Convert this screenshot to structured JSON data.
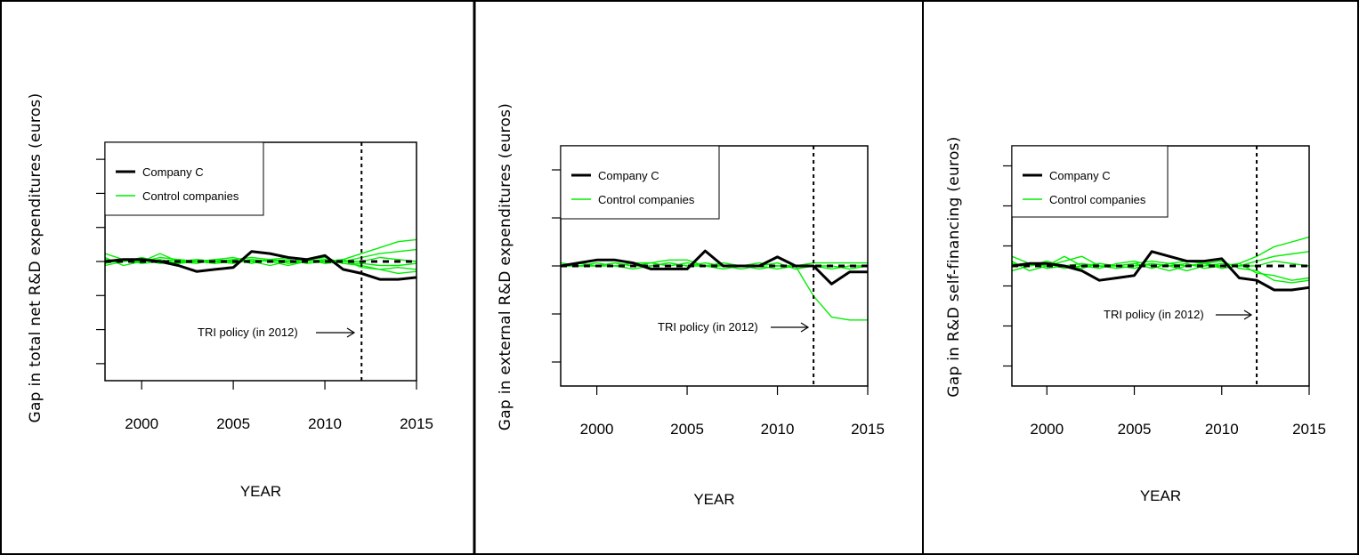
{
  "chart_data": [
    {
      "type": "line",
      "title": "",
      "xlabel": "YEAR",
      "ylabel": "Gap in total net R&D expenditures (euros)",
      "xlim": [
        1998,
        2015
      ],
      "ylim": [
        -3,
        3
      ],
      "xticks": [
        "2000",
        "2005",
        "2010",
        "2015"
      ],
      "y_tick_labels_shown": false,
      "legend": {
        "placement": "top-left",
        "entries": [
          "Company C",
          "Control companies"
        ]
      },
      "annotation": {
        "text": "TRI policy (in 2012)",
        "x": 2012
      },
      "x": [
        1998,
        1999,
        2000,
        2001,
        2002,
        2003,
        2004,
        2005,
        2006,
        2007,
        2008,
        2009,
        2010,
        2011,
        2012,
        2013,
        2014,
        2015
      ],
      "series": [
        {
          "name": "Company C",
          "color": "#000000",
          "values": [
            0.0,
            0.05,
            0.05,
            0.0,
            -0.1,
            -0.25,
            -0.2,
            -0.15,
            0.25,
            0.2,
            0.1,
            0.05,
            0.15,
            -0.2,
            -0.3,
            -0.45,
            -0.45,
            -0.4
          ]
        },
        {
          "name": "Control companies",
          "color": "#00ee00",
          "values": [
            0.2,
            0.05,
            0.0,
            0.1,
            0.05,
            0.0,
            0.0,
            0.05,
            0.1,
            0.05,
            0.1,
            0.05,
            0.0,
            0.05,
            0.2,
            0.35,
            0.5,
            0.55
          ]
        },
        {
          "color": "#00ee00",
          "values": [
            0.1,
            -0.1,
            0.0,
            0.2,
            0.0,
            -0.05,
            0.05,
            0.1,
            0.0,
            -0.1,
            0.0,
            0.05,
            0.1,
            -0.05,
            -0.1,
            -0.2,
            -0.15,
            -0.2
          ]
        },
        {
          "color": "#00ee00",
          "values": [
            -0.1,
            0.0,
            0.1,
            0.0,
            -0.05,
            0.05,
            0.0,
            -0.05,
            0.05,
            0.0,
            -0.1,
            0.0,
            0.05,
            0.0,
            0.1,
            0.2,
            0.25,
            0.3
          ]
        },
        {
          "color": "#00ee00",
          "values": [
            0.0,
            0.05,
            -0.05,
            0.0,
            0.05,
            0.0,
            -0.05,
            0.0,
            0.05,
            0.0,
            0.05,
            -0.05,
            0.0,
            0.05,
            -0.15,
            -0.2,
            -0.3,
            -0.25
          ]
        },
        {
          "color": "#00ee00",
          "values": [
            0.05,
            0.0,
            0.05,
            -0.05,
            0.0,
            0.05,
            0.0,
            0.05,
            -0.05,
            0.05,
            0.0,
            0.05,
            -0.05,
            0.0,
            0.0,
            0.1,
            0.05,
            0.0
          ]
        },
        {
          "color": "#00ee00",
          "values": [
            -0.05,
            0.05,
            0.0,
            0.05,
            -0.05,
            0.0,
            0.05,
            0.0,
            0.0,
            0.05,
            -0.05,
            0.0,
            0.05,
            -0.05,
            -0.05,
            -0.1,
            -0.1,
            -0.05
          ]
        }
      ],
      "benchmark": {
        "style": "dashed",
        "value": 0
      }
    },
    {
      "type": "line",
      "title": "",
      "xlabel": "YEAR",
      "ylabel": "Gap in external R&D expenditures (euros)",
      "xlim": [
        1998,
        2015
      ],
      "ylim": [
        -2,
        2
      ],
      "xticks": [
        "2000",
        "2005",
        "2010",
        "2015"
      ],
      "y_tick_labels_shown": false,
      "legend": {
        "placement": "top-left",
        "entries": [
          "Company C",
          "Control companies"
        ]
      },
      "annotation": {
        "text": "TRI policy (in 2012)",
        "x": 2012
      },
      "x": [
        1998,
        1999,
        2000,
        2001,
        2002,
        2003,
        2004,
        2005,
        2006,
        2007,
        2008,
        2009,
        2010,
        2011,
        2012,
        2013,
        2014,
        2015
      ],
      "series": [
        {
          "name": "Company C",
          "color": "#000000",
          "values": [
            0.0,
            0.05,
            0.1,
            0.1,
            0.05,
            -0.05,
            -0.05,
            -0.05,
            0.25,
            0.0,
            0.0,
            0.0,
            0.15,
            0.0,
            0.0,
            -0.3,
            -0.1,
            -0.1
          ]
        },
        {
          "name": "Control companies",
          "color": "#00ee00",
          "values": [
            0.0,
            0.0,
            0.0,
            0.0,
            0.05,
            0.05,
            0.1,
            0.1,
            0.0,
            0.0,
            0.0,
            -0.05,
            0.0,
            0.0,
            -0.5,
            -0.85,
            -0.9,
            -0.9
          ]
        },
        {
          "color": "#00ee00",
          "values": [
            0.0,
            0.05,
            0.0,
            0.05,
            0.0,
            0.05,
            0.0,
            0.05,
            0.0,
            -0.05,
            0.0,
            0.05,
            0.0,
            0.0,
            0.05,
            0.05,
            0.05,
            0.05
          ]
        },
        {
          "color": "#00ee00",
          "values": [
            0.0,
            0.0,
            0.05,
            0.0,
            -0.05,
            0.0,
            0.05,
            0.0,
            0.05,
            0.0,
            -0.05,
            0.0,
            0.05,
            -0.05,
            0.0,
            -0.05,
            0.0,
            0.0
          ]
        },
        {
          "color": "#00ee00",
          "values": [
            0.05,
            0.0,
            0.0,
            0.05,
            0.0,
            0.0,
            0.05,
            0.0,
            0.0,
            0.05,
            0.0,
            0.0,
            -0.05,
            0.0,
            0.0,
            0.0,
            -0.05,
            0.0
          ]
        }
      ],
      "benchmark": {
        "style": "dashed",
        "value": 0
      }
    },
    {
      "type": "line",
      "title": "",
      "xlabel": "YEAR",
      "ylabel": "Gap in  R&D self-financing (euros)",
      "xlim": [
        1998,
        2015
      ],
      "ylim": [
        -2.5,
        2.5
      ],
      "xticks": [
        "2000",
        "2005",
        "2010",
        "2015"
      ],
      "y_tick_labels_shown": false,
      "legend": {
        "placement": "top-left",
        "entries": [
          "Company C",
          "Control companies"
        ]
      },
      "annotation": {
        "text": "TRI policy (in 2012)",
        "x": 2012
      },
      "x": [
        1998,
        1999,
        2000,
        2001,
        2002,
        2003,
        2004,
        2005,
        2006,
        2007,
        2008,
        2009,
        2010,
        2011,
        2012,
        2013,
        2014,
        2015
      ],
      "series": [
        {
          "name": "Company C",
          "color": "#000000",
          "values": [
            0.0,
            0.05,
            0.05,
            0.0,
            -0.1,
            -0.3,
            -0.25,
            -0.2,
            0.3,
            0.2,
            0.1,
            0.1,
            0.15,
            -0.25,
            -0.3,
            -0.5,
            -0.5,
            -0.45
          ]
        },
        {
          "name": "Control companies",
          "color": "#00ee00",
          "values": [
            0.2,
            0.05,
            0.0,
            0.1,
            0.2,
            0.0,
            0.0,
            0.05,
            0.1,
            0.05,
            0.1,
            0.05,
            0.0,
            0.05,
            0.2,
            0.4,
            0.5,
            0.6
          ]
        },
        {
          "color": "#00ee00",
          "values": [
            0.1,
            -0.1,
            0.0,
            0.2,
            0.0,
            -0.05,
            0.05,
            0.1,
            0.0,
            -0.1,
            0.0,
            0.05,
            0.1,
            -0.05,
            -0.1,
            -0.3,
            -0.35,
            -0.3
          ]
        },
        {
          "color": "#00ee00",
          "values": [
            -0.1,
            0.0,
            0.1,
            0.0,
            -0.05,
            0.05,
            0.0,
            -0.05,
            0.05,
            0.0,
            -0.1,
            0.0,
            0.05,
            0.0,
            0.1,
            0.2,
            0.25,
            0.3
          ]
        },
        {
          "color": "#00ee00",
          "values": [
            0.0,
            0.05,
            -0.05,
            0.0,
            0.05,
            0.0,
            -0.05,
            0.0,
            0.05,
            0.0,
            0.05,
            -0.05,
            0.0,
            0.05,
            -0.15,
            -0.2,
            -0.3,
            -0.25
          ]
        },
        {
          "color": "#00ee00",
          "values": [
            0.05,
            0.0,
            0.05,
            -0.05,
            0.0,
            0.05,
            0.0,
            0.05,
            -0.05,
            0.05,
            0.0,
            0.05,
            -0.05,
            0.0,
            0.0,
            0.1,
            0.05,
            0.0
          ]
        }
      ],
      "benchmark": {
        "style": "dashed",
        "value": 0
      }
    }
  ]
}
